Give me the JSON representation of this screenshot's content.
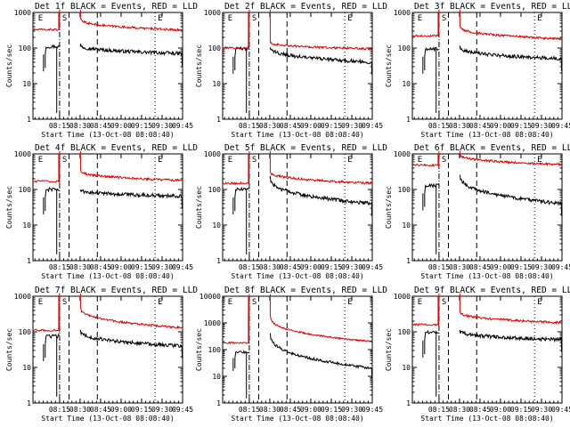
{
  "figure": {
    "colors": {
      "events": "#000000",
      "lld": "#e00000",
      "axes": "#000000",
      "background": "#ffffff"
    }
  },
  "chart_data": [
    {
      "type": "line",
      "panel": 1,
      "title": "Det 1f BLACK = Events, RED = LLD",
      "xlabel": "Start Time (13-Oct-08 08:08:40)",
      "ylabel": "Counts/sec",
      "x_tick_labels": [
        "08:15",
        "08:30",
        "08:45",
        "09:00",
        "09:15",
        "09:30",
        "09:45"
      ],
      "y_tick_labels": [
        "1",
        "10",
        "100",
        "1000"
      ],
      "ylim": [
        1,
        1000
      ],
      "xlim_minutes": [
        8.5,
        45
      ],
      "markers": [
        "E",
        "S",
        "E"
      ],
      "series": [
        {
          "name": "Events",
          "color": "#000000",
          "baseline": 110,
          "end": 70,
          "plateau_start": 125
        },
        {
          "name": "LLD",
          "color": "#e00000",
          "baseline": 330,
          "end": 320,
          "plateau_start": 680
        }
      ]
    },
    {
      "type": "line",
      "panel": 2,
      "title": "Det 2f BLACK = Events, RED = LLD",
      "xlabel": "Start Time (13-Oct-08 08:08:40)",
      "ylabel": "Counts/sec",
      "x_tick_labels": [
        "08:15",
        "08:30",
        "08:45",
        "09:00",
        "09:15",
        "09:30",
        "09:45"
      ],
      "y_tick_labels": [
        "1",
        "10",
        "100",
        "1000"
      ],
      "ylim": [
        1,
        1000
      ],
      "xlim_minutes": [
        8.5,
        45
      ],
      "markers": [
        "E",
        "S",
        "E"
      ],
      "series": [
        {
          "name": "Events",
          "color": "#000000",
          "baseline": 95,
          "end": 40,
          "plateau_start": 110
        },
        {
          "name": "LLD",
          "color": "#e00000",
          "baseline": 100,
          "end": 95,
          "plateau_start": 150
        }
      ]
    },
    {
      "type": "line",
      "panel": 3,
      "title": "Det 3f BLACK = Events, RED = LLD",
      "xlabel": "Start Time (13-Oct-08 08:08:40)",
      "ylabel": "Counts/sec",
      "x_tick_labels": [
        "08:15",
        "08:30",
        "08:45",
        "09:00",
        "09:15",
        "09:30",
        "09:45"
      ],
      "y_tick_labels": [
        "1",
        "10",
        "100",
        "1000"
      ],
      "ylim": [
        1,
        1000
      ],
      "xlim_minutes": [
        8.5,
        45
      ],
      "markers": [
        "E",
        "S",
        "E"
      ],
      "series": [
        {
          "name": "Events",
          "color": "#000000",
          "baseline": 95,
          "end": 50,
          "plateau_start": 110
        },
        {
          "name": "LLD",
          "color": "#e00000",
          "baseline": 220,
          "end": 180,
          "plateau_start": 420
        }
      ]
    },
    {
      "type": "line",
      "panel": 4,
      "title": "Det 4f BLACK = Events, RED = LLD",
      "xlabel": "Start Time (13-Oct-08 08:08:40)",
      "ylabel": "Counts/sec",
      "x_tick_labels": [
        "08:15",
        "08:30",
        "08:45",
        "09:00",
        "09:15",
        "09:30",
        "09:45"
      ],
      "y_tick_labels": [
        "1",
        "10",
        "100",
        "1000"
      ],
      "ylim": [
        1,
        1000
      ],
      "xlim_minutes": [
        8.5,
        45
      ],
      "markers": [
        "E",
        "S",
        "E"
      ],
      "series": [
        {
          "name": "Events",
          "color": "#000000",
          "baseline": 100,
          "end": 65,
          "plateau_start": 100
        },
        {
          "name": "LLD",
          "color": "#e00000",
          "baseline": 170,
          "end": 180,
          "plateau_start": 350
        }
      ]
    },
    {
      "type": "line",
      "panel": 5,
      "title": "Det 5f BLACK = Events, RED = LLD",
      "xlabel": "Start Time (13-Oct-08 08:08:40)",
      "ylabel": "Counts/sec",
      "x_tick_labels": [
        "08:15",
        "08:30",
        "08:45",
        "09:00",
        "09:15",
        "09:30",
        "09:45"
      ],
      "y_tick_labels": [
        "1",
        "10",
        "100",
        "1000"
      ],
      "ylim": [
        1,
        1000
      ],
      "xlim_minutes": [
        8.5,
        45
      ],
      "markers": [
        "E",
        "S",
        "E"
      ],
      "series": [
        {
          "name": "Events",
          "color": "#000000",
          "baseline": 100,
          "end": 40,
          "plateau_start": 230
        },
        {
          "name": "LLD",
          "color": "#e00000",
          "baseline": 150,
          "end": 150,
          "plateau_start": 330
        }
      ]
    },
    {
      "type": "line",
      "panel": 6,
      "title": "Det 6f BLACK = Events, RED = LLD",
      "xlabel": "Start Time (13-Oct-08 08:08:40)",
      "ylabel": "Counts/sec",
      "x_tick_labels": [
        "08:15",
        "08:30",
        "08:45",
        "09:00",
        "09:15",
        "09:30",
        "09:45"
      ],
      "y_tick_labels": [
        "1",
        "10",
        "100",
        "1000"
      ],
      "ylim": [
        1,
        1000
      ],
      "xlim_minutes": [
        8.5,
        45
      ],
      "markers": [
        "E",
        "S",
        "E"
      ],
      "series": [
        {
          "name": "Events",
          "color": "#000000",
          "baseline": 130,
          "end": 40,
          "plateau_start": 280
        },
        {
          "name": "LLD",
          "color": "#e00000",
          "baseline": 480,
          "end": 500,
          "plateau_start": 1000
        }
      ]
    },
    {
      "type": "line",
      "panel": 7,
      "title": "Det 7f BLACK = Events, RED = LLD",
      "xlabel": "Start Time (13-Oct-08 08:08:40)",
      "ylabel": "Counts/sec",
      "x_tick_labels": [
        "08:15",
        "08:30",
        "08:45",
        "09:00",
        "09:15",
        "09:30",
        "09:45"
      ],
      "y_tick_labels": [
        "1",
        "10",
        "100",
        "1000"
      ],
      "ylim": [
        1,
        1000
      ],
      "xlim_minutes": [
        8.5,
        45
      ],
      "markers": [
        "E",
        "S",
        "E"
      ],
      "series": [
        {
          "name": "Events",
          "color": "#000000",
          "baseline": 75,
          "end": 40,
          "plateau_start": 110
        },
        {
          "name": "LLD",
          "color": "#e00000",
          "baseline": 110,
          "end": 130,
          "plateau_start": 500
        }
      ]
    },
    {
      "type": "line",
      "panel": 8,
      "title": "Det 8f BLACK = Events, RED = LLD",
      "xlabel": "Start Time (13-Oct-08 08:08:40)",
      "ylabel": "Counts/sec",
      "x_tick_labels": [
        "08:15",
        "08:30",
        "08:45",
        "09:00",
        "09:15",
        "09:30",
        "09:45"
      ],
      "y_tick_labels": [
        "1",
        "10",
        "100",
        "1000",
        "10000"
      ],
      "ylim": [
        1,
        10000
      ],
      "xlim_minutes": [
        8.5,
        45
      ],
      "markers": [
        "E",
        "S",
        "E"
      ],
      "series": [
        {
          "name": "Events",
          "color": "#000000",
          "baseline": 80,
          "end": 20,
          "plateau_start": 450
        },
        {
          "name": "LLD",
          "color": "#e00000",
          "baseline": 180,
          "end": 200,
          "plateau_start": 2000
        }
      ]
    },
    {
      "type": "line",
      "panel": 9,
      "title": "Det 9f BLACK = Events, RED = LLD",
      "xlabel": "Start Time (13-Oct-08 08:08:40)",
      "ylabel": "Counts/sec",
      "x_tick_labels": [
        "08:15",
        "08:30",
        "08:45",
        "09:00",
        "09:15",
        "09:30",
        "09:45"
      ],
      "y_tick_labels": [
        "1",
        "10",
        "100",
        "1000"
      ],
      "ylim": [
        1,
        1000
      ],
      "xlim_minutes": [
        8.5,
        45
      ],
      "markers": [
        "E",
        "S",
        "E"
      ],
      "series": [
        {
          "name": "Events",
          "color": "#000000",
          "baseline": 95,
          "end": 60,
          "plateau_start": 110
        },
        {
          "name": "LLD",
          "color": "#e00000",
          "baseline": 160,
          "end": 180,
          "plateau_start": 380
        }
      ]
    }
  ]
}
